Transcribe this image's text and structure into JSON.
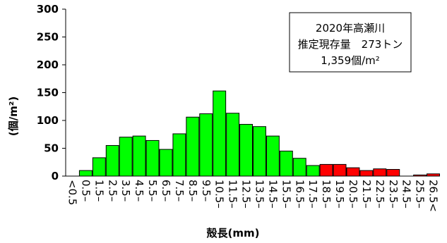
{
  "chart_data": {
    "type": "bar",
    "categories": [
      "<0.5",
      "0.5–",
      "1.5–",
      "2.5–",
      "3.5–",
      "4.5–",
      "5.5–",
      "6.5–",
      "7.5–",
      "8.5–",
      "9.5–",
      "10.5–",
      "11.5–",
      "12.5–",
      "13.5–",
      "14.5–",
      "15.5–",
      "16.5–",
      "17.5–",
      "18.5–",
      "19.5–",
      "20.5–",
      "21.5–",
      "22.5–",
      "23.5–",
      "24.5–",
      "25.5–",
      "26.5<"
    ],
    "values": [
      0,
      10,
      33,
      55,
      70,
      72,
      64,
      48,
      76,
      106,
      112,
      153,
      113,
      93,
      89,
      72,
      45,
      32,
      19,
      21,
      21,
      15,
      10,
      13,
      12,
      0,
      2,
      4
    ],
    "highlight_from_index": 19,
    "colors": {
      "normal": "#00ff00",
      "highlight": "#ff0000",
      "stroke": "#000000"
    },
    "xlabel": "殻長(mm)",
    "ylabel": "(個/m²)",
    "ylim": [
      0,
      300
    ],
    "yticks": [
      0,
      50,
      100,
      150,
      200,
      250,
      300
    ],
    "grid": false,
    "annotation": {
      "line1": "2020年高瀬川",
      "line2": "推定現存量　273トン",
      "line3": "1,359個/m²"
    }
  }
}
